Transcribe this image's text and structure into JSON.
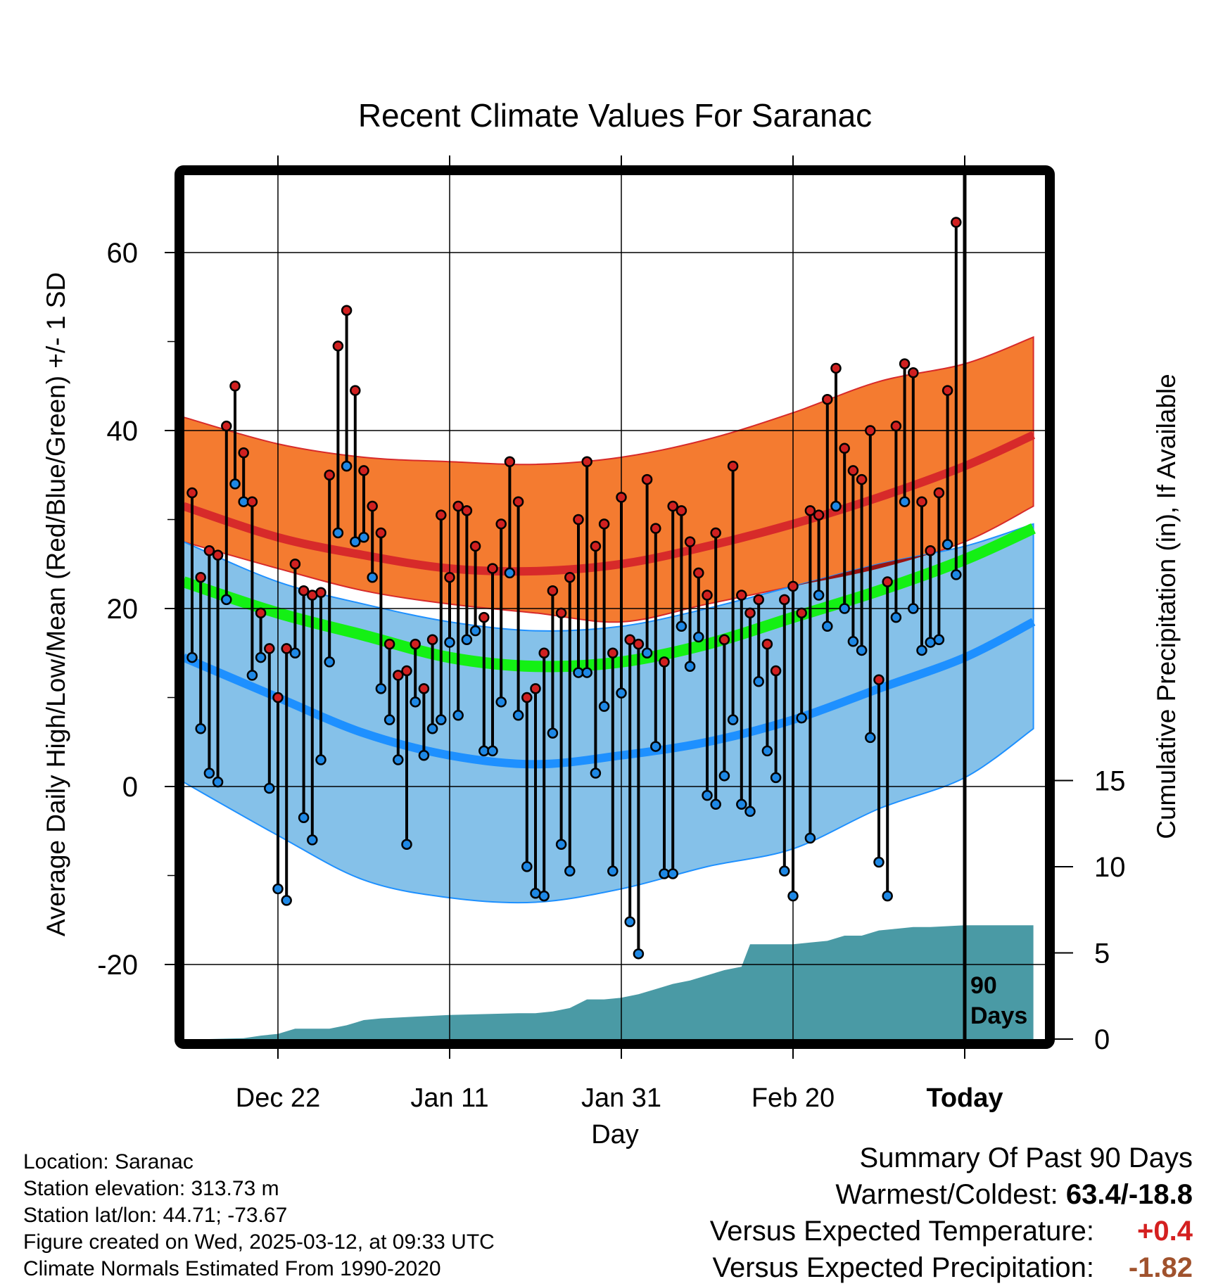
{
  "colors": {
    "high_band": "#f47b30",
    "high_mean": "#d72a2a",
    "low_band": "#85c1e9",
    "low_mean": "#1e90ff",
    "overlap": "#991313",
    "avg_mean": "#14f014",
    "precip": "#4a9aa5",
    "high_point": "#d02020",
    "low_point": "#1e88e5",
    "temp_delta": "#d42020",
    "precip_delta": "#a0522d"
  },
  "chart_data": {
    "type": "line",
    "title": "Recent Climate Values For Saranac",
    "xlabel": "Day",
    "ylabel": "Average Daily High/Low/Mean (Red/Blue/Green) +/- 1 SD",
    "y2label": "Cumulative Precipitation (in), If Available",
    "xlim": [
      -11.5,
      88.5
    ],
    "ylim": [
      -28.5,
      68.5
    ],
    "y2lim": [
      0,
      15
    ],
    "y_ticks": [
      -20,
      0,
      20,
      40,
      60
    ],
    "y2_ticks": [
      0,
      5,
      10,
      15
    ],
    "x_ticks": [
      {
        "x": 0,
        "label": "Dec 22"
      },
      {
        "x": 20,
        "label": "Jan 11"
      },
      {
        "x": 40,
        "label": "Jan 31"
      },
      {
        "x": 60,
        "label": "Feb 20"
      },
      {
        "x": 80,
        "label": "Today"
      }
    ],
    "marker": {
      "x": 80,
      "label_line1": "90",
      "label_line2": "Days"
    },
    "grid": true,
    "normals": {
      "x": [
        -11,
        0,
        10,
        20,
        30,
        40,
        50,
        60,
        70,
        80,
        88
      ],
      "high_mean": [
        31.5,
        28,
        26,
        24.5,
        24.2,
        25,
        27,
        29.5,
        32.5,
        36,
        39.5
      ],
      "high_upper": [
        41.5,
        38.5,
        37,
        36.5,
        36.2,
        37,
        39,
        42,
        45.5,
        47.5,
        50.5
      ],
      "high_lower": [
        27.5,
        24.5,
        22,
        20.5,
        19.5,
        18.5,
        20.5,
        22.5,
        24.5,
        27.5,
        31.5
      ],
      "avg_mean": [
        23,
        19.5,
        17,
        14.5,
        13.5,
        14,
        16,
        19,
        22,
        25.5,
        29
      ],
      "low_mean": [
        14.5,
        10,
        6,
        3.5,
        2.5,
        3.5,
        5,
        7.5,
        11,
        14.5,
        18.5
      ],
      "low_upper": [
        27.5,
        23,
        20.5,
        18.5,
        17.5,
        18,
        20,
        22.5,
        25,
        27,
        29.5
      ],
      "low_lower": [
        0.5,
        -5.5,
        -10.5,
        -12.5,
        -13,
        -11.5,
        -9,
        -7,
        -2.5,
        1,
        6.5
      ]
    },
    "daily": {
      "x": [
        -10,
        -9,
        -8,
        -7,
        -6,
        -5,
        -4,
        -3,
        -2,
        -1,
        0,
        1,
        2,
        3,
        4,
        5,
        6,
        7,
        8,
        9,
        10,
        11,
        12,
        13,
        14,
        15,
        16,
        17,
        18,
        19,
        20,
        21,
        22,
        23,
        24,
        25,
        26,
        27,
        28,
        29,
        30,
        31,
        32,
        33,
        34,
        35,
        36,
        37,
        38,
        39,
        40,
        41,
        42,
        43,
        44,
        45,
        46,
        47,
        48,
        49,
        50,
        51,
        52,
        53,
        54,
        55,
        56,
        57,
        58,
        59,
        60,
        61,
        62,
        63,
        64,
        65,
        66,
        67,
        68,
        69,
        70,
        71,
        72,
        73,
        74,
        75,
        76,
        77,
        78,
        79
      ],
      "high": [
        33,
        23.5,
        26.5,
        26,
        40.5,
        45,
        37.5,
        32,
        19.5,
        15.5,
        10,
        15.5,
        25,
        22,
        21.5,
        21.8,
        35,
        49.5,
        53.5,
        44.5,
        35.5,
        31.5,
        28.5,
        16,
        12.5,
        13,
        16,
        11,
        16.5,
        30.5,
        23.5,
        31.5,
        31,
        27,
        19,
        24.5,
        29.5,
        36.5,
        32,
        10,
        11,
        15,
        22,
        19.5,
        23.5,
        30,
        36.5,
        27,
        29.5,
        15,
        32.5,
        16.5,
        16,
        34.5,
        29,
        14,
        31.5,
        31,
        27.5,
        24,
        21.5,
        28.5,
        16.5,
        36,
        21.5,
        19.5,
        21,
        16,
        13,
        21,
        22.5,
        19.5,
        31,
        30.5,
        43.5,
        47,
        38,
        35.5,
        34.5,
        40,
        12,
        23,
        40.5,
        47.5,
        46.5,
        32,
        26.5,
        33,
        44.5,
        63.4
      ],
      "low": [
        14.5,
        6.5,
        1.5,
        0.5,
        21,
        34,
        32,
        12.5,
        14.5,
        -0.2,
        -11.5,
        -12.8,
        15,
        -3.5,
        -6,
        3,
        14,
        28.5,
        36,
        27.5,
        28,
        23.5,
        11,
        7.5,
        3,
        -6.5,
        9.5,
        3.5,
        6.5,
        7.5,
        16.2,
        8,
        16.5,
        17.5,
        4,
        4,
        9.5,
        24,
        8,
        -9,
        -12,
        -12.3,
        6,
        -6.5,
        -9.5,
        12.8,
        12.8,
        1.5,
        9,
        -9.5,
        10.5,
        -15.2,
        -18.8,
        15,
        4.5,
        -9.8,
        -9.8,
        18,
        13.5,
        16.8,
        -1,
        -2,
        1.2,
        7.5,
        -2,
        -2.8,
        11.8,
        4,
        1,
        -9.5,
        -12.3,
        7.7,
        -5.8,
        21.5,
        18,
        31.5,
        20,
        16.3,
        15.3,
        5.5,
        -8.5,
        -12.3,
        19,
        32,
        20,
        15.3,
        16.2,
        16.5,
        27.2,
        23.8
      ]
    },
    "precip": {
      "x": [
        -11,
        -8,
        -4,
        -2,
        0,
        2,
        6,
        8,
        10,
        12,
        16,
        20,
        24,
        28,
        30,
        32,
        34,
        36,
        38,
        40,
        42,
        44,
        46,
        48,
        50,
        52,
        54,
        55,
        56,
        58,
        60,
        62,
        64,
        66,
        68,
        70,
        72,
        74,
        76,
        78,
        80,
        88
      ],
      "values": [
        0,
        0,
        0.05,
        0.2,
        0.3,
        0.6,
        0.6,
        0.8,
        1.1,
        1.2,
        1.3,
        1.4,
        1.45,
        1.5,
        1.5,
        1.6,
        1.8,
        2.3,
        2.3,
        2.4,
        2.6,
        2.9,
        3.2,
        3.4,
        3.7,
        4.0,
        4.2,
        5.5,
        5.5,
        5.5,
        5.5,
        5.6,
        5.7,
        6.0,
        6.0,
        6.3,
        6.4,
        6.5,
        6.5,
        6.55,
        6.6,
        6.6
      ]
    }
  },
  "info": {
    "location": "Location: Saranac",
    "elevation": "Station elevation: 313.73 m",
    "latlon": "Station lat/lon: 44.71; -73.67",
    "created": "Figure created on Wed, 2025-03-12, at 09:33 UTC",
    "normals": "Climate Normals Estimated From 1990-2020"
  },
  "summary": {
    "heading": "Summary Of Past 90 Days",
    "warm_cold_label": "Warmest/Coldest: ",
    "warm_cold_value": "63.4/-18.8",
    "temp_label": "Versus Expected Temperature:",
    "temp_value": "+0.4",
    "precip_label": "Versus Expected Precipitation:",
    "precip_value": "-1.82"
  }
}
